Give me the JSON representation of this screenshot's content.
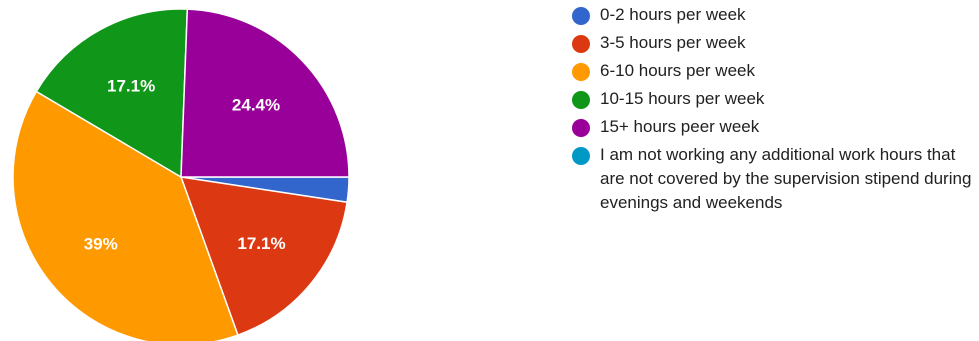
{
  "chart_data": {
    "type": "pie",
    "slices": [
      {
        "name": "0-2 hours per week",
        "value": 2.4,
        "color": "#3366cc",
        "label": ""
      },
      {
        "name": "3-5 hours per week",
        "value": 17.1,
        "color": "#dc3912",
        "label": "17.1%"
      },
      {
        "name": "6-10 hours per week",
        "value": 39,
        "color": "#ff9900",
        "label": "39%"
      },
      {
        "name": "10-15 hours per week",
        "value": 17.1,
        "color": "#109618",
        "label": "17.1%"
      },
      {
        "name": "15+ hours peer week",
        "value": 24.4,
        "color": "#990099",
        "label": "24.4%"
      },
      {
        "name": "I am not working any additional work hours that are not covered by the supervision stipend during evenings and weekends",
        "value": 0,
        "color": "#0099c6",
        "label": ""
      }
    ],
    "legend_position": "right"
  },
  "legend": {
    "items": [
      {
        "label": "0-2 hours per week",
        "color": "#3366cc"
      },
      {
        "label": "3-5 hours per week",
        "color": "#dc3912"
      },
      {
        "label": "6-10 hours per week",
        "color": "#ff9900"
      },
      {
        "label": "10-15 hours per week",
        "color": "#109618"
      },
      {
        "label": "15+ hours peer week",
        "color": "#990099"
      },
      {
        "label": "I am not working any additional work hours that are not covered by the supervision stipend during evenings and weekends",
        "color": "#0099c6"
      }
    ]
  }
}
